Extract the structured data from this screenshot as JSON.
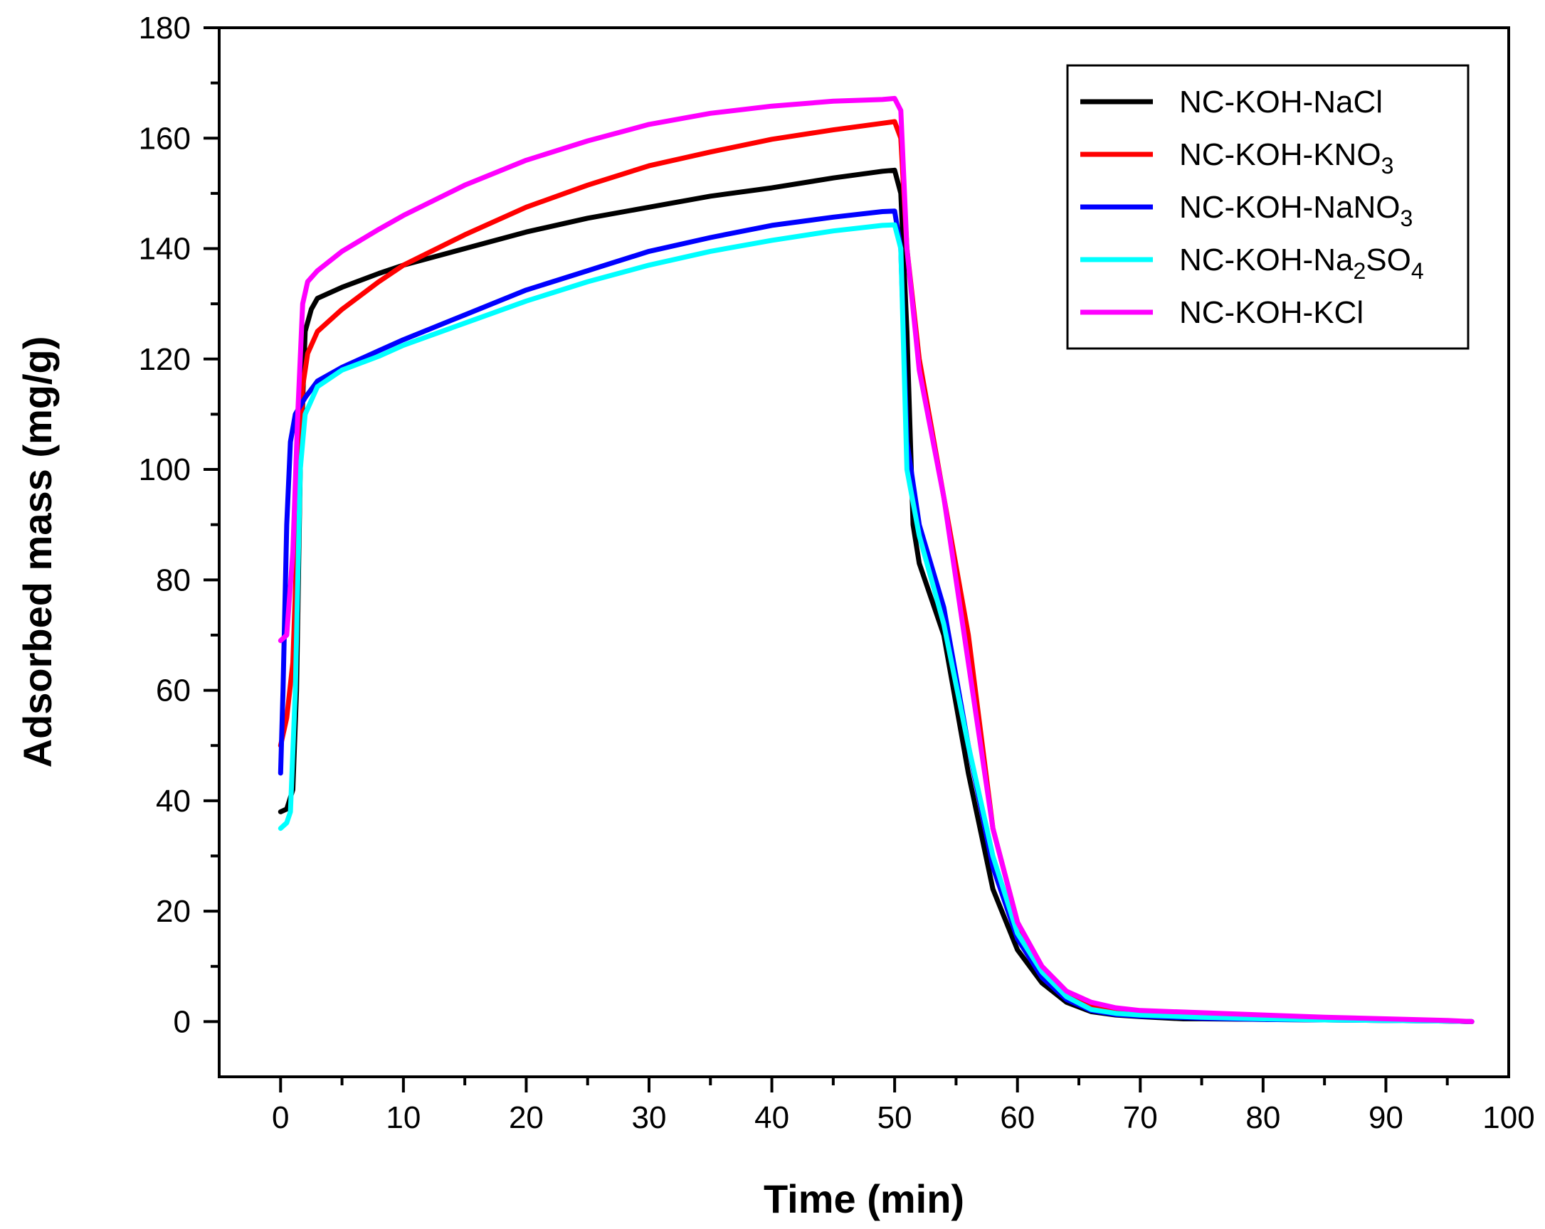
{
  "chart_data": {
    "type": "line",
    "title": "",
    "xlabel": "Time (min)",
    "ylabel": "Adsorbed mass (mg/g)",
    "xlim": [
      -5,
      100
    ],
    "ylim": [
      -10,
      180
    ],
    "xticks": [
      0,
      10,
      20,
      30,
      40,
      50,
      60,
      70,
      80,
      90,
      100
    ],
    "yticks": [
      0,
      20,
      40,
      60,
      80,
      100,
      120,
      140,
      160,
      180
    ],
    "legend_position": "top-right",
    "series": [
      {
        "name": "NC-KOH-NaCl",
        "name_parts": [
          {
            "t": "NC-KOH-NaCl"
          }
        ],
        "color": "#000000",
        "points": [
          [
            0,
            38
          ],
          [
            0.5,
            38.5
          ],
          [
            1,
            42
          ],
          [
            1.3,
            60
          ],
          [
            1.6,
            100
          ],
          [
            2,
            125
          ],
          [
            2.5,
            129
          ],
          [
            3,
            131
          ],
          [
            5,
            133
          ],
          [
            8,
            135.5
          ],
          [
            10,
            137
          ],
          [
            15,
            140
          ],
          [
            20,
            143
          ],
          [
            25,
            145.5
          ],
          [
            30,
            147.5
          ],
          [
            35,
            149.5
          ],
          [
            40,
            151
          ],
          [
            45,
            152.8
          ],
          [
            49,
            154
          ],
          [
            50,
            154.2
          ],
          [
            50.5,
            150
          ],
          [
            51,
            125
          ],
          [
            51.5,
            90
          ],
          [
            52,
            83
          ],
          [
            54,
            70
          ],
          [
            56,
            45
          ],
          [
            58,
            24
          ],
          [
            60,
            13
          ],
          [
            62,
            7
          ],
          [
            64,
            3.5
          ],
          [
            66,
            1.8
          ],
          [
            68,
            1.2
          ],
          [
            70,
            0.9
          ],
          [
            73.5,
            0.5
          ],
          [
            75,
            0.5
          ],
          [
            80,
            0.4
          ],
          [
            85,
            0.3
          ],
          [
            90,
            0.2
          ],
          [
            95,
            0.1
          ],
          [
            97,
            0
          ]
        ]
      },
      {
        "name": "NC-KOH-KNO3",
        "name_parts": [
          {
            "t": "NC-KOH-KNO"
          },
          {
            "t": "3",
            "sub": true
          }
        ],
        "color": "#ff0000",
        "points": [
          [
            0,
            50
          ],
          [
            0.5,
            55
          ],
          [
            1,
            65
          ],
          [
            1.4,
            90
          ],
          [
            1.8,
            115
          ],
          [
            2.2,
            121
          ],
          [
            3,
            125
          ],
          [
            5,
            129
          ],
          [
            8,
            134
          ],
          [
            10,
            137
          ],
          [
            15,
            142.5
          ],
          [
            20,
            147.5
          ],
          [
            25,
            151.5
          ],
          [
            30,
            155
          ],
          [
            35,
            157.5
          ],
          [
            40,
            159.8
          ],
          [
            45,
            161.5
          ],
          [
            49,
            162.7
          ],
          [
            50,
            163
          ],
          [
            50.5,
            160
          ],
          [
            51,
            140
          ],
          [
            52,
            120
          ],
          [
            54,
            95
          ],
          [
            56,
            70
          ],
          [
            58,
            35
          ],
          [
            60,
            18
          ],
          [
            62,
            9
          ],
          [
            64,
            5
          ],
          [
            66,
            3
          ],
          [
            68,
            2
          ],
          [
            70,
            1.5
          ],
          [
            75,
            1
          ],
          [
            80,
            0.7
          ],
          [
            85,
            0.5
          ],
          [
            90,
            0.3
          ],
          [
            95,
            0.1
          ],
          [
            97,
            0
          ]
        ]
      },
      {
        "name": "NC-KOH-NaNO3",
        "name_parts": [
          {
            "t": "NC-KOH-NaNO"
          },
          {
            "t": "3",
            "sub": true
          }
        ],
        "color": "#0000ff",
        "points": [
          [
            0,
            45
          ],
          [
            0.2,
            60
          ],
          [
            0.5,
            90
          ],
          [
            0.8,
            105
          ],
          [
            1.2,
            110
          ],
          [
            2,
            113
          ],
          [
            3,
            116
          ],
          [
            5,
            118.5
          ],
          [
            8,
            121.5
          ],
          [
            10,
            123.5
          ],
          [
            15,
            128
          ],
          [
            20,
            132.5
          ],
          [
            25,
            136
          ],
          [
            30,
            139.5
          ],
          [
            35,
            142
          ],
          [
            40,
            144.2
          ],
          [
            45,
            145.7
          ],
          [
            49,
            146.7
          ],
          [
            50,
            146.8
          ],
          [
            50.5,
            140
          ],
          [
            51,
            105
          ],
          [
            52,
            90
          ],
          [
            54,
            75
          ],
          [
            56,
            50
          ],
          [
            58,
            28
          ],
          [
            60,
            15
          ],
          [
            62,
            8
          ],
          [
            64,
            4
          ],
          [
            66,
            2
          ],
          [
            68,
            1.3
          ],
          [
            70,
            1
          ],
          [
            75,
            0.6
          ],
          [
            80,
            0.4
          ],
          [
            85,
            0.3
          ],
          [
            90,
            0.2
          ],
          [
            95,
            0.1
          ],
          [
            97,
            0
          ]
        ]
      },
      {
        "name": "NC-KOH-Na2SO4",
        "name_parts": [
          {
            "t": "NC-KOH-Na"
          },
          {
            "t": "2",
            "sub": true
          },
          {
            "t": "SO"
          },
          {
            "t": "4",
            "sub": true
          }
        ],
        "color": "#00ffff",
        "points": [
          [
            0,
            35
          ],
          [
            0.5,
            36
          ],
          [
            0.8,
            38
          ],
          [
            1.2,
            60
          ],
          [
            1.6,
            100
          ],
          [
            2,
            110
          ],
          [
            3,
            115
          ],
          [
            5,
            118
          ],
          [
            8,
            120.5
          ],
          [
            10,
            122.5
          ],
          [
            15,
            126.5
          ],
          [
            20,
            130.5
          ],
          [
            25,
            134
          ],
          [
            30,
            137
          ],
          [
            35,
            139.5
          ],
          [
            40,
            141.5
          ],
          [
            45,
            143.2
          ],
          [
            49,
            144.2
          ],
          [
            50,
            144.3
          ],
          [
            50.5,
            140
          ],
          [
            51,
            100
          ],
          [
            52,
            88
          ],
          [
            54,
            72
          ],
          [
            56,
            50
          ],
          [
            58,
            30
          ],
          [
            60,
            16
          ],
          [
            62,
            9
          ],
          [
            64,
            4.5
          ],
          [
            66,
            2.2
          ],
          [
            68,
            1.5
          ],
          [
            70,
            1.2
          ],
          [
            75,
            0.8
          ],
          [
            80,
            0.5
          ],
          [
            85,
            0.3
          ],
          [
            90,
            0.2
          ],
          [
            95,
            0.1
          ],
          [
            97,
            0
          ]
        ]
      },
      {
        "name": "NC-KOH-KCl",
        "name_parts": [
          {
            "t": "NC-KOH-KCl"
          }
        ],
        "color": "#ff00ff",
        "points": [
          [
            0,
            69
          ],
          [
            0.5,
            70
          ],
          [
            1,
            85
          ],
          [
            1.4,
            110
          ],
          [
            1.8,
            130
          ],
          [
            2.2,
            134
          ],
          [
            3,
            136
          ],
          [
            5,
            139.5
          ],
          [
            8,
            143.5
          ],
          [
            10,
            146
          ],
          [
            15,
            151.5
          ],
          [
            20,
            156
          ],
          [
            25,
            159.5
          ],
          [
            30,
            162.5
          ],
          [
            35,
            164.5
          ],
          [
            40,
            165.8
          ],
          [
            45,
            166.7
          ],
          [
            49,
            167
          ],
          [
            50,
            167.2
          ],
          [
            50.5,
            165
          ],
          [
            51,
            140
          ],
          [
            52,
            118
          ],
          [
            54,
            95
          ],
          [
            56,
            65
          ],
          [
            58,
            35
          ],
          [
            60,
            18
          ],
          [
            62,
            10
          ],
          [
            64,
            5.5
          ],
          [
            66,
            3.5
          ],
          [
            68,
            2.5
          ],
          [
            70,
            2
          ],
          [
            75,
            1.6
          ],
          [
            80,
            1.2
          ],
          [
            85,
            0.8
          ],
          [
            90,
            0.5
          ],
          [
            95,
            0.2
          ],
          [
            97,
            0
          ]
        ]
      }
    ]
  }
}
